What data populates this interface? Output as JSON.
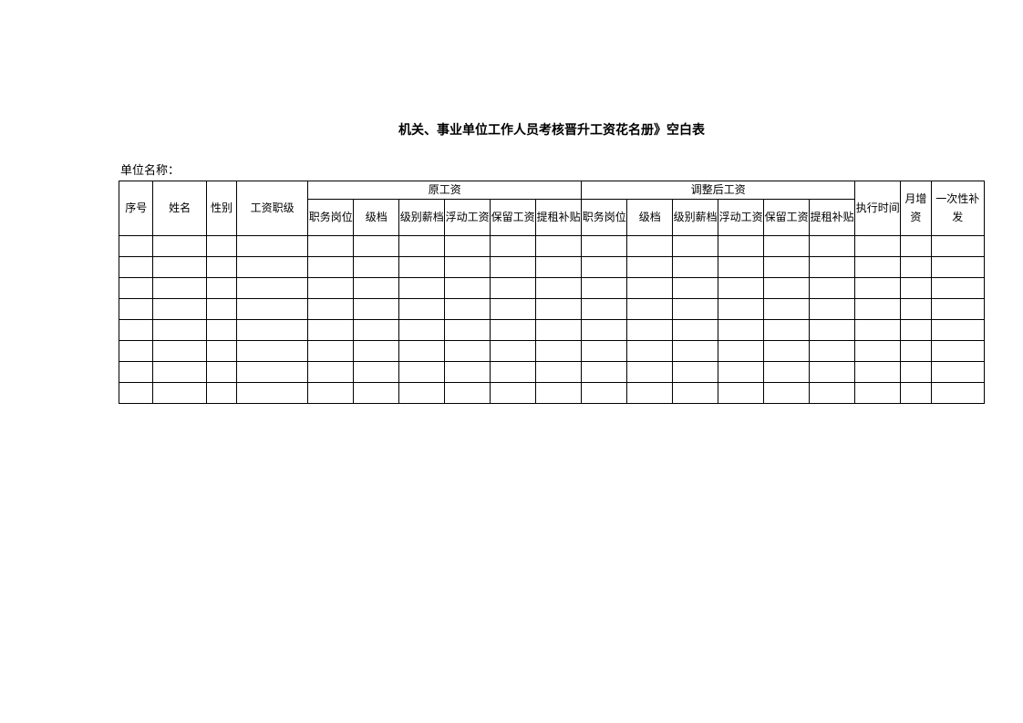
{
  "document": {
    "title": "机关、事业单位工作人员考核晋升工资花名册》空白表",
    "unit_label": "单位名称：",
    "background_color": "#ffffff",
    "border_color": "#000000",
    "text_color": "#000000",
    "title_fontsize": 14,
    "body_fontsize": 12,
    "font_family": "SimSun"
  },
  "table": {
    "data_row_count": 8,
    "header": {
      "seq": "序号",
      "name": "姓名",
      "gender": "性别",
      "salary_rank": "工资职级",
      "original_salary": "原工资",
      "adjusted_salary": "调整后工资",
      "exec_time": "执行时间",
      "monthly_increase": "月增资",
      "onetime_reissue": "一次性补发",
      "sub": {
        "position": "职务岗位",
        "grade": "级档",
        "grade_salary": "级别薪档",
        "floating_salary": "浮动工资",
        "reserved_salary": "保留工资",
        "rent_subsidy": "提租补贴"
      }
    },
    "columns": {
      "seq_width": 36,
      "name_width": 56,
      "gender_width": 32,
      "rank_width": 75,
      "sub_width": 48,
      "exec_width": 48,
      "month_width": 32,
      "onetime_width": 56
    }
  }
}
